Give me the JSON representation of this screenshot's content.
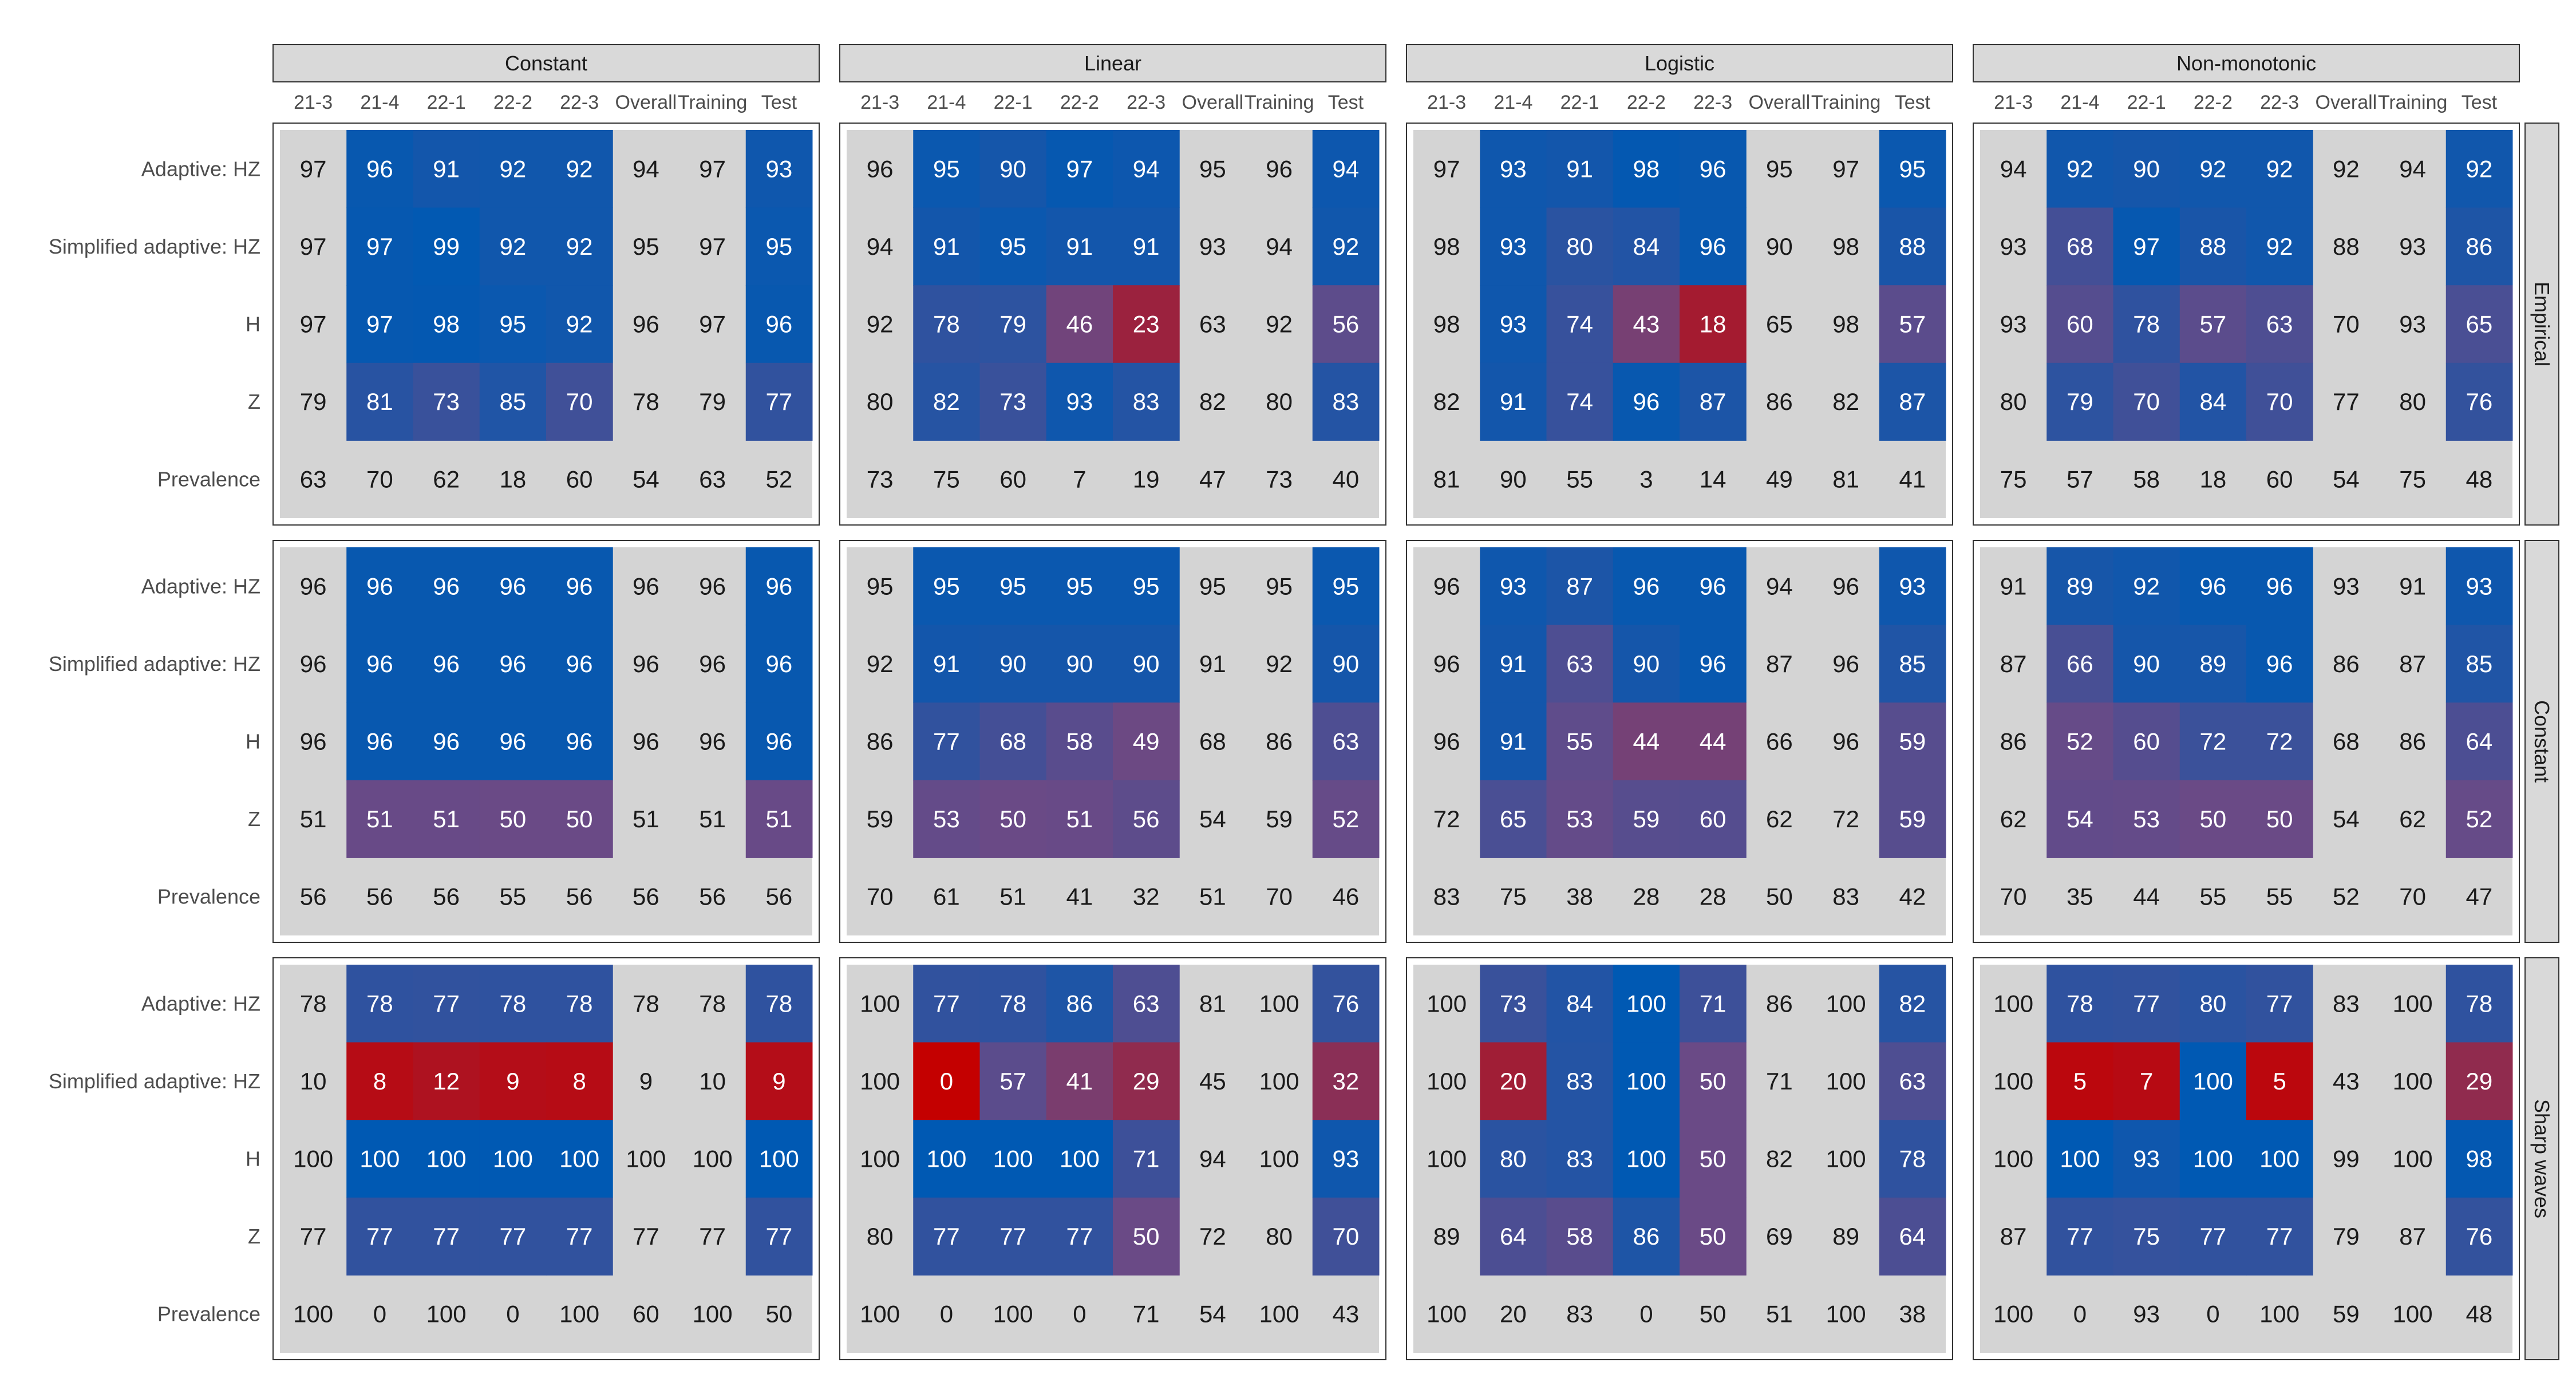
{
  "chart_data": {
    "type": "heatmap",
    "title": "",
    "xlabel": "",
    "ylabel": "",
    "column_facets": [
      "Constant",
      "Linear",
      "Logistic",
      "Non-monotonic"
    ],
    "row_facets": [
      "Empirical",
      "Constant",
      "Sharp waves"
    ],
    "columns": [
      "21-3",
      "21-4",
      "22-1",
      "22-2",
      "22-3",
      "Overall",
      "Training",
      "Test"
    ],
    "rows": [
      "Adaptive: HZ",
      "Simplified adaptive: HZ",
      "H",
      "Z",
      "Prevalence"
    ],
    "colored_columns": [
      "21-4",
      "22-1",
      "22-2",
      "22-3",
      "Test"
    ],
    "colored_rows": [
      "Adaptive: HZ",
      "Simplified adaptive: HZ",
      "H",
      "Z"
    ],
    "colors": {
      "low": "#c40000",
      "mid": "#6a4a86",
      "high": "#0059b3",
      "neutral": "#d4d4d4",
      "strip": "#d9d9d9",
      "border": "#333333",
      "dark_text": "#1a1a1a",
      "light_text": "#ffffff"
    },
    "panels": [
      [
        [
          [
            97,
            96,
            91,
            92,
            92,
            94,
            97,
            93
          ],
          [
            97,
            97,
            99,
            92,
            92,
            95,
            97,
            95
          ],
          [
            97,
            97,
            98,
            95,
            92,
            96,
            97,
            96
          ],
          [
            79,
            81,
            73,
            85,
            70,
            78,
            79,
            77
          ],
          [
            63,
            70,
            62,
            18,
            60,
            54,
            63,
            52
          ]
        ],
        [
          [
            96,
            95,
            90,
            97,
            94,
            95,
            96,
            94
          ],
          [
            94,
            91,
            95,
            91,
            91,
            93,
            94,
            92
          ],
          [
            92,
            78,
            79,
            46,
            23,
            63,
            92,
            56
          ],
          [
            80,
            82,
            73,
            93,
            83,
            82,
            80,
            83
          ],
          [
            73,
            75,
            60,
            7,
            19,
            47,
            73,
            40
          ]
        ],
        [
          [
            97,
            93,
            91,
            98,
            96,
            95,
            97,
            95
          ],
          [
            98,
            93,
            80,
            84,
            96,
            90,
            98,
            88
          ],
          [
            98,
            93,
            74,
            43,
            18,
            65,
            98,
            57
          ],
          [
            82,
            91,
            74,
            96,
            87,
            86,
            82,
            87
          ],
          [
            81,
            90,
            55,
            3,
            14,
            49,
            81,
            41
          ]
        ],
        [
          [
            94,
            92,
            90,
            92,
            92,
            92,
            94,
            92
          ],
          [
            93,
            68,
            97,
            88,
            92,
            88,
            93,
            86
          ],
          [
            93,
            60,
            78,
            57,
            63,
            70,
            93,
            65
          ],
          [
            80,
            79,
            70,
            84,
            70,
            77,
            80,
            76
          ],
          [
            75,
            57,
            58,
            18,
            60,
            54,
            75,
            48
          ]
        ]
      ],
      [
        [
          [
            96,
            96,
            96,
            96,
            96,
            96,
            96,
            96
          ],
          [
            96,
            96,
            96,
            96,
            96,
            96,
            96,
            96
          ],
          [
            96,
            96,
            96,
            96,
            96,
            96,
            96,
            96
          ],
          [
            51,
            51,
            51,
            50,
            50,
            51,
            51,
            51
          ],
          [
            56,
            56,
            56,
            55,
            56,
            56,
            56,
            56
          ]
        ],
        [
          [
            95,
            95,
            95,
            95,
            95,
            95,
            95,
            95
          ],
          [
            92,
            91,
            90,
            90,
            90,
            91,
            92,
            90
          ],
          [
            86,
            77,
            68,
            58,
            49,
            68,
            86,
            63
          ],
          [
            59,
            53,
            50,
            51,
            56,
            54,
            59,
            52
          ],
          [
            70,
            61,
            51,
            41,
            32,
            51,
            70,
            46
          ]
        ],
        [
          [
            96,
            93,
            87,
            96,
            96,
            94,
            96,
            93
          ],
          [
            96,
            91,
            63,
            90,
            96,
            87,
            96,
            85
          ],
          [
            96,
            91,
            55,
            44,
            44,
            66,
            96,
            59
          ],
          [
            72,
            65,
            53,
            59,
            60,
            62,
            72,
            59
          ],
          [
            83,
            75,
            38,
            28,
            28,
            50,
            83,
            42
          ]
        ],
        [
          [
            91,
            89,
            92,
            96,
            96,
            93,
            91,
            93
          ],
          [
            87,
            66,
            90,
            89,
            96,
            86,
            87,
            85
          ],
          [
            86,
            52,
            60,
            72,
            72,
            68,
            86,
            64
          ],
          [
            62,
            54,
            53,
            50,
            50,
            54,
            62,
            52
          ],
          [
            70,
            35,
            44,
            55,
            55,
            52,
            70,
            47
          ]
        ]
      ],
      [
        [
          [
            78,
            78,
            77,
            78,
            78,
            78,
            78,
            78
          ],
          [
            10,
            8,
            12,
            9,
            8,
            9,
            10,
            9
          ],
          [
            100,
            100,
            100,
            100,
            100,
            100,
            100,
            100
          ],
          [
            77,
            77,
            77,
            77,
            77,
            77,
            77,
            77
          ],
          [
            100,
            0,
            100,
            0,
            100,
            60,
            100,
            50
          ]
        ],
        [
          [
            100,
            77,
            78,
            86,
            63,
            81,
            100,
            76
          ],
          [
            100,
            0,
            57,
            41,
            29,
            45,
            100,
            32
          ],
          [
            100,
            100,
            100,
            100,
            71,
            94,
            100,
            93
          ],
          [
            80,
            77,
            77,
            77,
            50,
            72,
            80,
            70
          ],
          [
            100,
            0,
            100,
            0,
            71,
            54,
            100,
            43
          ]
        ],
        [
          [
            100,
            73,
            84,
            100,
            71,
            86,
            100,
            82
          ],
          [
            100,
            20,
            83,
            100,
            50,
            71,
            100,
            63
          ],
          [
            100,
            80,
            83,
            100,
            50,
            82,
            100,
            78
          ],
          [
            89,
            64,
            58,
            86,
            50,
            69,
            89,
            64
          ],
          [
            100,
            20,
            83,
            0,
            50,
            51,
            100,
            38
          ]
        ],
        [
          [
            100,
            78,
            77,
            80,
            77,
            83,
            100,
            78
          ],
          [
            100,
            5,
            7,
            100,
            5,
            43,
            100,
            29
          ],
          [
            100,
            100,
            93,
            100,
            100,
            99,
            100,
            98
          ],
          [
            87,
            77,
            75,
            77,
            77,
            79,
            87,
            76
          ],
          [
            100,
            0,
            93,
            0,
            100,
            59,
            100,
            48
          ]
        ]
      ]
    ]
  }
}
